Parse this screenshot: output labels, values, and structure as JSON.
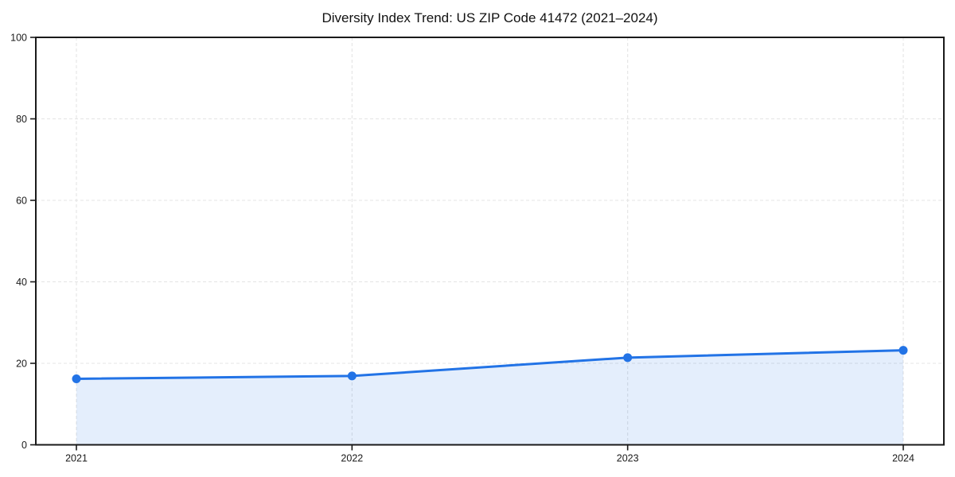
{
  "chart_data": {
    "type": "area",
    "title": "Diversity Index Trend: US ZIP Code 41472 (2021–2024)",
    "x": [
      2021,
      2022,
      2023,
      2024
    ],
    "series": [
      {
        "name": "Diversity Index",
        "values": [
          16.2,
          16.9,
          21.4,
          23.2
        ]
      }
    ],
    "xlabel": "",
    "ylabel": "",
    "ylim": [
      0,
      100
    ],
    "yticks": [
      0,
      20,
      40,
      60,
      80,
      100
    ],
    "grid": "dashed-both-axes",
    "legend_position": "none",
    "colors": {
      "line": "#2273e6",
      "marker": "#2273e6",
      "fill": "rgba(34,115,230,0.12)",
      "grid": "#e4e4e4",
      "axis": "#1a1a1a",
      "tick_text": "#1a1a1a",
      "background": "#ffffff"
    }
  }
}
